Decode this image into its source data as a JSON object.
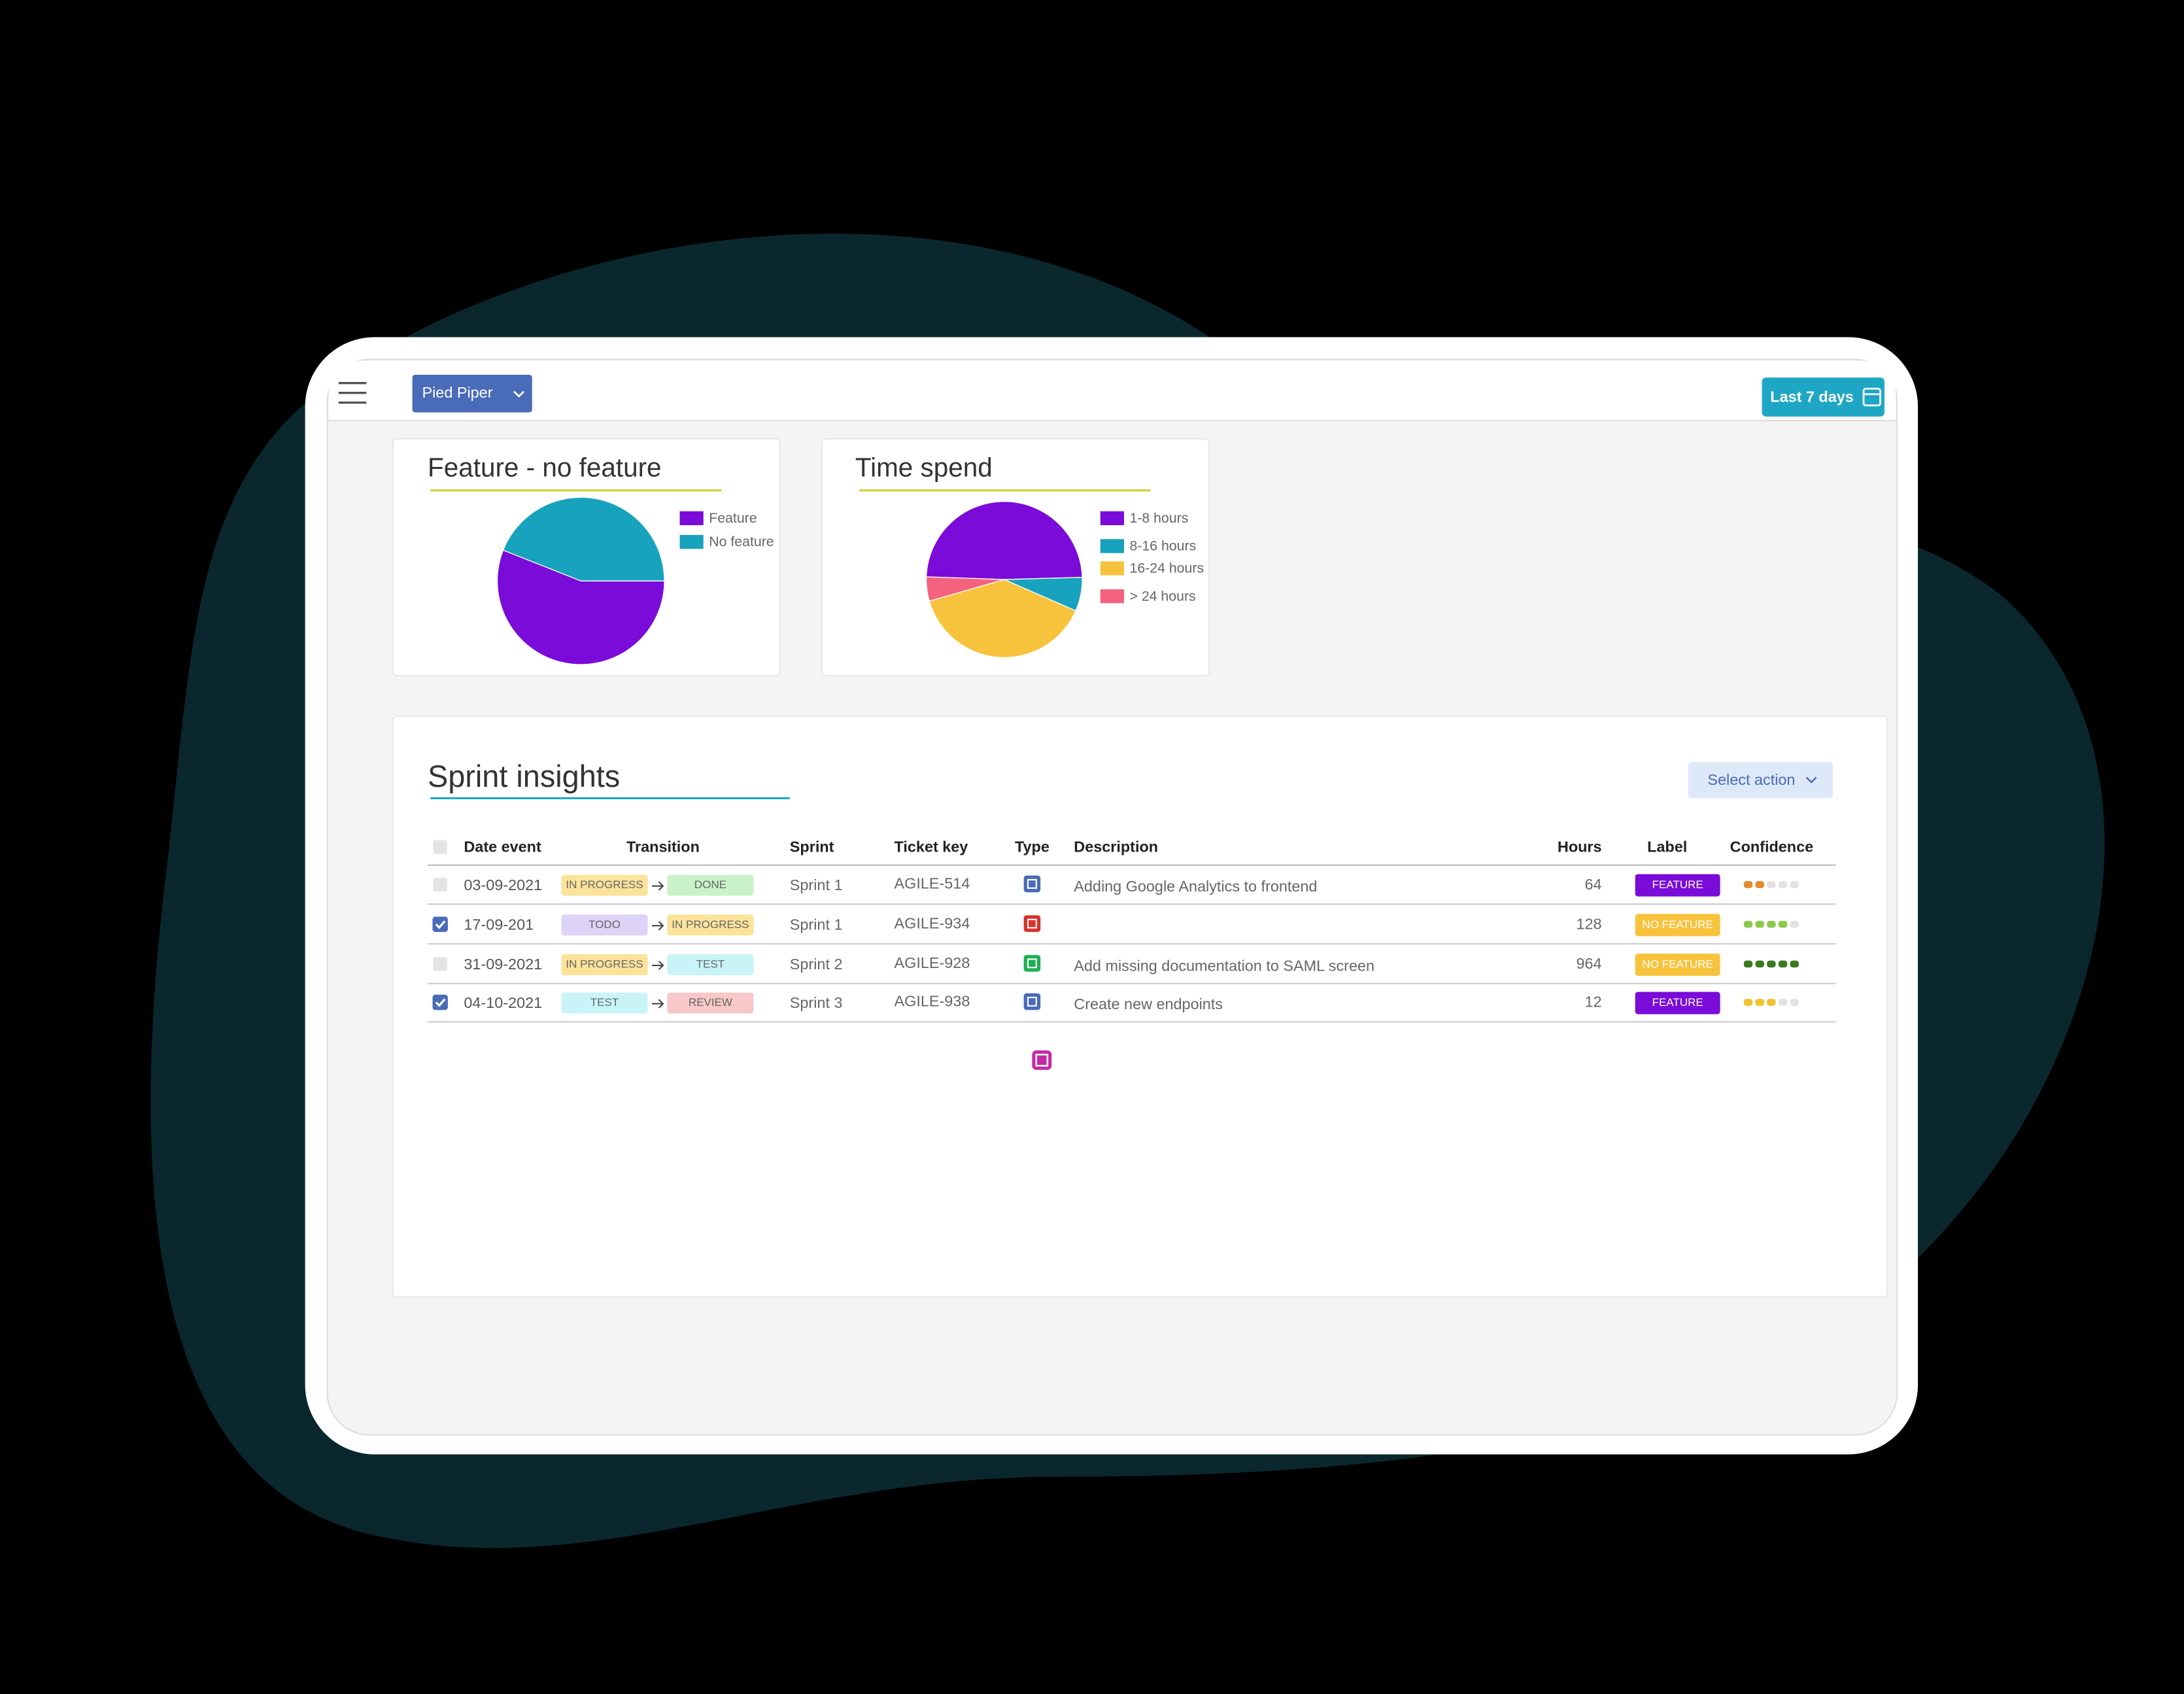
{
  "header": {
    "project": "Pied Piper",
    "range": "Last 7 days"
  },
  "chart_data": [
    {
      "type": "pie",
      "title": "Feature - no feature",
      "categories": [
        "Feature",
        "No feature"
      ],
      "values": [
        56,
        44
      ],
      "colors": [
        "#7a0bd8",
        "#17a2bd"
      ]
    },
    {
      "type": "pie",
      "title": "Time spend",
      "categories": [
        "1-8 hours",
        "8-16 hours",
        "16-24 hours",
        "> 24 hours"
      ],
      "values": [
        49,
        7,
        39,
        5
      ],
      "colors": [
        "#7a0bd8",
        "#17a2bd",
        "#f8c33c",
        "#f5627e"
      ]
    }
  ],
  "table": {
    "title": "Sprint insights",
    "action": "Select action",
    "columns": [
      "Date event",
      "Transition",
      "Sprint",
      "Ticket key",
      "Type",
      "Description",
      "Hours",
      "Label",
      "Confidence"
    ],
    "confidence_max": 5,
    "rows": [
      {
        "checked": false,
        "date": "03-09-2021",
        "from": "IN PROGRESS",
        "from_color": "#fbe39a",
        "to": "DONE",
        "to_color": "#c9f2c9",
        "sprint": "Sprint 1",
        "ticket": "AGILE-514",
        "type_color": "#4a6bb8",
        "description": "Adding Google Analytics to frontend",
        "hours": "64",
        "label": "FEATURE",
        "label_color": "#7a0bd8",
        "confidence": 2,
        "confidence_color": "#e08a2c"
      },
      {
        "checked": true,
        "date": "17-09-201",
        "from": "TODO",
        "from_color": "#ddd3f7",
        "to": "IN PROGRESS",
        "to_color": "#fbe39a",
        "sprint": "Sprint 1",
        "ticket": "AGILE-934",
        "type_color": "#d9302c",
        "description": null,
        "hours": "128",
        "label": "NO FEATURE",
        "label_color": "#f8c33c",
        "confidence": 4,
        "confidence_color": "#8cc84b"
      },
      {
        "checked": false,
        "date": "31-09-2021",
        "from": "IN PROGRESS",
        "from_color": "#fbe39a",
        "to": "TEST",
        "to_color": "#c8f4f7",
        "sprint": "Sprint 2",
        "ticket": "AGILE-928",
        "type_color": "#1fae55",
        "description": "Add missing documentation to SAML screen",
        "hours": "964",
        "label": "NO FEATURE",
        "label_color": "#f8c33c",
        "confidence": 5,
        "confidence_color": "#3b7a1e"
      },
      {
        "checked": true,
        "date": "04-10-2021",
        "from": "TEST",
        "from_color": "#c8f4f7",
        "to": "REVIEW",
        "to_color": "#f8c7c7",
        "sprint": "Sprint 3",
        "ticket": "AGILE-938",
        "type_color": "#4a6bb8",
        "description": "Create new endpoints",
        "hours": "12",
        "label": "FEATURE",
        "label_color": "#7a0bd8",
        "confidence": 3,
        "confidence_color": "#f2c230"
      }
    ]
  }
}
